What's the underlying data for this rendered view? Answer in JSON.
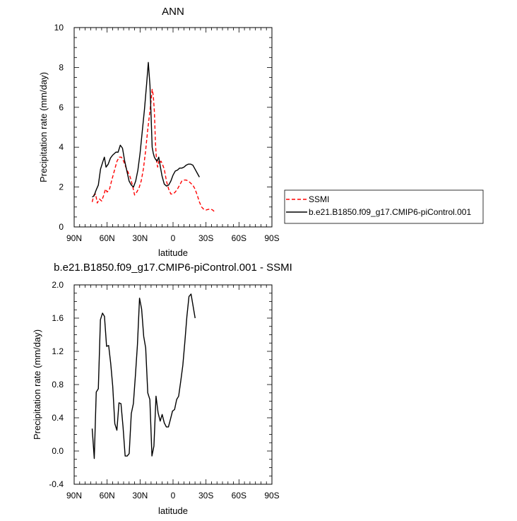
{
  "chart_data": [
    {
      "type": "line",
      "title": "ANN",
      "xlabel": "latitude",
      "ylabel": "Precipitation rate (mm/day)",
      "xlim": [
        90,
        -90
      ],
      "ylim": [
        0,
        10
      ],
      "xticks": [
        90,
        60,
        30,
        0,
        -30,
        -60,
        -90
      ],
      "xtick_labels": [
        "90N",
        "60N",
        "30N",
        "0",
        "30S",
        "60S",
        "90S"
      ],
      "yticks": [
        0,
        2,
        4,
        6,
        8,
        10
      ],
      "ytick_labels": [
        "0",
        "2",
        "4",
        "6",
        "8",
        "10"
      ],
      "grid": false,
      "legend_position": "right",
      "series": [
        {
          "name": "SSMI",
          "color": "#ff0000",
          "dash": "dashed",
          "points": [
            [
              73.6,
              1.25
            ],
            [
              72,
              1.6
            ],
            [
              70.5,
              1.65
            ],
            [
              69,
              1.2
            ],
            [
              67,
              1.4
            ],
            [
              65,
              1.3
            ],
            [
              63,
              1.6
            ],
            [
              61.5,
              1.9
            ],
            [
              60,
              1.75
            ],
            [
              58,
              1.85
            ],
            [
              56,
              2.3
            ],
            [
              54,
              2.7
            ],
            [
              51,
              3.3
            ],
            [
              49,
              3.5
            ],
            [
              47,
              3.5
            ],
            [
              45,
              3.3
            ],
            [
              43,
              3.0
            ],
            [
              41,
              2.75
            ],
            [
              39,
              2.5
            ],
            [
              37,
              2.1
            ],
            [
              35,
              1.6
            ],
            [
              33,
              1.75
            ],
            [
              31,
              1.95
            ],
            [
              29,
              2.3
            ],
            [
              27,
              2.9
            ],
            [
              25,
              3.8
            ],
            [
              23,
              4.9
            ],
            [
              21.5,
              5.6
            ],
            [
              20,
              6.3
            ],
            [
              19,
              6.9
            ],
            [
              18,
              6.6
            ],
            [
              17,
              5.8
            ],
            [
              16,
              4.2
            ],
            [
              15,
              3.3
            ],
            [
              14,
              3.0
            ],
            [
              13,
              3.3
            ],
            [
              12,
              3.2
            ],
            [
              11,
              3.3
            ],
            [
              10,
              3.2
            ],
            [
              8,
              2.9
            ],
            [
              6,
              2.3
            ],
            [
              4,
              1.9
            ],
            [
              2,
              1.65
            ],
            [
              0,
              1.65
            ],
            [
              -2,
              1.75
            ],
            [
              -4,
              1.9
            ],
            [
              -6,
              2.1
            ],
            [
              -8,
              2.3
            ],
            [
              -10,
              2.35
            ],
            [
              -12,
              2.35
            ],
            [
              -14,
              2.3
            ],
            [
              -16,
              2.2
            ],
            [
              -18,
              2.1
            ],
            [
              -20,
              1.9
            ],
            [
              -22,
              1.6
            ],
            [
              -24,
              1.25
            ],
            [
              -26,
              1.0
            ],
            [
              -28,
              0.88
            ],
            [
              -30,
              0.85
            ],
            [
              -32,
              0.88
            ],
            [
              -34,
              0.9
            ],
            [
              -36,
              0.85
            ],
            [
              -38,
              0.75
            ]
          ]
        },
        {
          "name": "b.e21.B1850.f09_g17.CMIP6-piControl.001",
          "color": "#000000",
          "dash": "solid",
          "points": [
            [
              73.6,
              1.5
            ],
            [
              72,
              1.55
            ],
            [
              70,
              1.85
            ],
            [
              68,
              2.1
            ],
            [
              66,
              2.9
            ],
            [
              64,
              3.25
            ],
            [
              62.5,
              3.5
            ],
            [
              61,
              3.0
            ],
            [
              59,
              3.15
            ],
            [
              57,
              3.45
            ],
            [
              55,
              3.6
            ],
            [
              52,
              3.75
            ],
            [
              50,
              3.75
            ],
            [
              48,
              4.1
            ],
            [
              46,
              3.95
            ],
            [
              44,
              3.3
            ],
            [
              42,
              2.8
            ],
            [
              40,
              2.3
            ],
            [
              38,
              2.1
            ],
            [
              36,
              2.0
            ],
            [
              34,
              2.3
            ],
            [
              32,
              2.85
            ],
            [
              30,
              3.7
            ],
            [
              28,
              4.8
            ],
            [
              26,
              5.9
            ],
            [
              24,
              7.2
            ],
            [
              22.5,
              8.25
            ],
            [
              21,
              7.1
            ],
            [
              20,
              5.6
            ],
            [
              19,
              4.0
            ],
            [
              18,
              3.7
            ],
            [
              17,
              3.5
            ],
            [
              16,
              3.4
            ],
            [
              14.5,
              3.3
            ],
            [
              13,
              3.5
            ],
            [
              11.5,
              3.0
            ],
            [
              10,
              2.55
            ],
            [
              8,
              2.15
            ],
            [
              6,
              2.05
            ],
            [
              4,
              2.1
            ],
            [
              2,
              2.3
            ],
            [
              0,
              2.6
            ],
            [
              -2,
              2.8
            ],
            [
              -4,
              2.85
            ],
            [
              -6,
              2.95
            ],
            [
              -8,
              2.95
            ],
            [
              -10,
              3.0
            ],
            [
              -12,
              3.1
            ],
            [
              -14,
              3.15
            ],
            [
              -16,
              3.15
            ],
            [
              -18,
              3.1
            ],
            [
              -20,
              2.9
            ],
            [
              -22,
              2.7
            ],
            [
              -24,
              2.5
            ]
          ]
        }
      ]
    },
    {
      "type": "line",
      "title": "b.e21.B1850.f09_g17.CMIP6-piControl.001 - SSMI",
      "xlabel": "latitude",
      "ylabel": "Precipitation rate (mm/day)",
      "xlim": [
        90,
        -90
      ],
      "ylim": [
        -0.4,
        2.0
      ],
      "xticks": [
        90,
        60,
        30,
        0,
        -30,
        -60,
        -90
      ],
      "xtick_labels": [
        "90N",
        "60N",
        "30N",
        "0",
        "30S",
        "60S",
        "90S"
      ],
      "yticks": [
        -0.4,
        0.0,
        0.4,
        0.8,
        1.2,
        1.6,
        2.0
      ],
      "ytick_labels": [
        "-0.4",
        "0.0",
        "0.4",
        "0.8",
        "1.2",
        "1.6",
        "2.0"
      ],
      "grid": false,
      "series": [
        {
          "color": "#000000",
          "dash": "solid",
          "points": [
            [
              73.6,
              0.27
            ],
            [
              71.7,
              -0.09
            ],
            [
              69.9,
              0.71
            ],
            [
              68,
              0.75
            ],
            [
              66.1,
              1.58
            ],
            [
              64.2,
              1.66
            ],
            [
              62.4,
              1.62
            ],
            [
              60.5,
              1.26
            ],
            [
              58.6,
              1.27
            ],
            [
              56.7,
              1.05
            ],
            [
              54.9,
              0.78
            ],
            [
              53,
              0.33
            ],
            [
              51.1,
              0.25
            ],
            [
              49.2,
              0.58
            ],
            [
              47.4,
              0.57
            ],
            [
              45.5,
              0.29
            ],
            [
              43.6,
              -0.06
            ],
            [
              41.7,
              -0.06
            ],
            [
              39.9,
              -0.03
            ],
            [
              38,
              0.45
            ],
            [
              36.1,
              0.57
            ],
            [
              34.2,
              0.92
            ],
            [
              32.4,
              1.28
            ],
            [
              30.5,
              1.84
            ],
            [
              28.6,
              1.71
            ],
            [
              26.7,
              1.38
            ],
            [
              24.9,
              1.24
            ],
            [
              23,
              0.7
            ],
            [
              21.1,
              0.62
            ],
            [
              19.2,
              -0.06
            ],
            [
              17.4,
              0.06
            ],
            [
              15.5,
              0.66
            ],
            [
              13.6,
              0.46
            ],
            [
              11.7,
              0.36
            ],
            [
              9.9,
              0.44
            ],
            [
              8,
              0.34
            ],
            [
              6.1,
              0.29
            ],
            [
              4.2,
              0.29
            ],
            [
              2.4,
              0.38
            ],
            [
              0.5,
              0.48
            ],
            [
              -1.4,
              0.5
            ],
            [
              -3.3,
              0.62
            ],
            [
              -5.1,
              0.66
            ],
            [
              -7,
              0.84
            ],
            [
              -8.9,
              1.03
            ],
            [
              -10.8,
              1.32
            ],
            [
              -12.6,
              1.62
            ],
            [
              -14.5,
              1.86
            ],
            [
              -16.4,
              1.89
            ],
            [
              -18.3,
              1.74
            ],
            [
              -20.1,
              1.6
            ]
          ]
        }
      ]
    }
  ]
}
